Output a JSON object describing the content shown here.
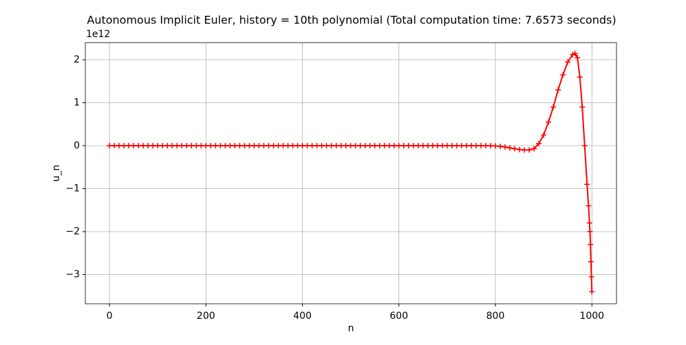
{
  "chart_data": {
    "type": "line",
    "title": "Autonomous Implicit Euler, history = 10th polynomial (Total computation time: 7.6573 seconds)",
    "x_label": "n",
    "y_label": "u_n",
    "y_offset_label": "1e12",
    "x": [
      0,
      10,
      20,
      30,
      40,
      50,
      60,
      70,
      80,
      90,
      100,
      110,
      120,
      130,
      140,
      150,
      160,
      170,
      180,
      190,
      200,
      210,
      220,
      230,
      240,
      250,
      260,
      270,
      280,
      290,
      300,
      310,
      320,
      330,
      340,
      350,
      360,
      370,
      380,
      390,
      400,
      410,
      420,
      430,
      440,
      450,
      460,
      470,
      480,
      490,
      500,
      510,
      520,
      530,
      540,
      550,
      560,
      570,
      580,
      590,
      600,
      610,
      620,
      630,
      640,
      650,
      660,
      670,
      680,
      690,
      700,
      710,
      720,
      730,
      740,
      750,
      760,
      770,
      780,
      790,
      800,
      810,
      820,
      830,
      840,
      850,
      860,
      870,
      880,
      890,
      900,
      910,
      920,
      930,
      940,
      950,
      960,
      965,
      970,
      975,
      980,
      985,
      990,
      993,
      995,
      996,
      997,
      998,
      999,
      1000
    ],
    "series": [
      {
        "name": "u_n",
        "color": "#ff0000",
        "values": [
          0,
          0,
          0,
          0,
          0,
          0,
          0,
          0,
          0,
          0,
          0,
          0,
          0,
          0,
          0,
          0,
          0,
          0,
          0,
          0,
          0,
          0,
          0,
          0,
          0,
          0,
          0,
          0,
          0,
          0,
          0,
          0,
          0,
          0,
          0,
          0,
          0,
          0,
          0,
          0,
          0,
          0,
          0,
          0,
          0,
          0,
          0,
          0,
          0,
          0,
          0,
          0,
          0,
          0,
          0,
          0,
          0,
          0,
          0,
          0,
          0,
          0,
          0,
          0,
          0,
          0,
          0,
          0,
          0,
          0,
          0,
          0,
          0,
          0,
          0,
          0,
          0,
          0,
          0,
          -0.002,
          -0.005,
          -0.015,
          -0.03,
          -0.05,
          -0.07,
          -0.09,
          -0.1,
          -0.1,
          -0.07,
          0.05,
          0.25,
          0.55,
          0.9,
          1.3,
          1.65,
          1.95,
          2.12,
          2.15,
          2.05,
          1.6,
          0.9,
          0,
          -0.9,
          -1.4,
          -1.8,
          -2.0,
          -2.3,
          -2.7,
          -3.05,
          -3.4
        ]
      }
    ],
    "xlim": [
      -50,
      1051
    ],
    "ylim": [
      -3.68,
      2.4
    ],
    "xticks": [
      0,
      200,
      400,
      600,
      800,
      1000
    ],
    "yticks": [
      {
        "value": -3,
        "label": "−3"
      },
      {
        "value": -2,
        "label": "−2"
      },
      {
        "value": -1,
        "label": "−1"
      },
      0,
      1,
      2
    ],
    "grid": true
  }
}
